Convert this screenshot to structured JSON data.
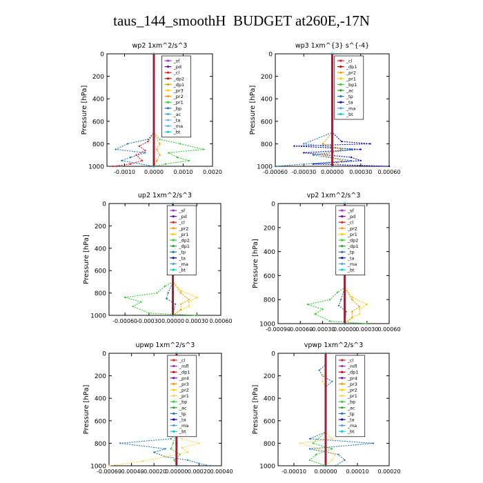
{
  "page": {
    "title": "taus_144_smoothH  BUDGET at260E,-17N"
  },
  "chart_data": [
    {
      "type": "line",
      "title": "wp2   1xm^2/s^3",
      "ylabel": "Pressure  [hPa]",
      "ylim": [
        1000,
        0
      ],
      "yticks": [
        0,
        200,
        400,
        600,
        800,
        1000
      ],
      "xlim": [
        -0.0016,
        0.002
      ],
      "xticks": [
        -0.001,
        0.0,
        0.001,
        0.002
      ],
      "xtick_labels": [
        "-0.0010",
        "0.0000",
        "0.0010",
        "0.0020"
      ],
      "legend_labels": [
        "_sf",
        "_pd",
        "_cl",
        "_dp2",
        "_dp1",
        "_pr3",
        "_pr2",
        "_pr1",
        "_bp",
        "_ac",
        "_ta",
        "_ma",
        "_bt"
      ],
      "legend_colors": [
        "#9b30d0",
        "#6a0dad",
        "#e41a1c",
        "#cc0000",
        "#e8a000",
        "#ffcc00",
        "#ff9900",
        "#33cc33",
        "#1f78b4",
        "#4aa3df",
        "#7fb3e0",
        "#5bc0de",
        "#00cccc"
      ],
      "series": [
        {
          "name": "_pr1",
          "p": [
            0,
            700,
            760,
            800,
            850,
            880,
            920,
            950,
            980,
            1000
          ],
          "v": [
            0.0,
            0.0,
            0.0002,
            0.0009,
            0.0017,
            0.0005,
            0.0008,
            0.0012,
            0.0004,
            0.0
          ]
        },
        {
          "name": "_bp",
          "p": [
            0,
            700,
            760,
            800,
            850,
            880,
            920,
            950,
            1000
          ],
          "v": [
            0.0,
            0.0,
            -0.0002,
            -0.0009,
            -0.0013,
            -0.0003,
            -0.0008,
            -0.0011,
            0.0
          ]
        },
        {
          "name": "_cl",
          "p": [
            0,
            700,
            780,
            820,
            860,
            900,
            950,
            980,
            1000
          ],
          "v": [
            0.0,
            0.0,
            -0.0002,
            -0.0005,
            -0.0003,
            -0.0006,
            -0.0004,
            -0.0008,
            -0.0014
          ]
        },
        {
          "name": "_pr2",
          "p": [
            0,
            700,
            800,
            850,
            900,
            950,
            1000
          ],
          "v": [
            0.0,
            0.0,
            0.0002,
            0.0001,
            0.0002,
            0.0001,
            0.0
          ]
        },
        {
          "name": "_sf",
          "p": [
            0,
            200,
            400,
            600,
            800,
            900,
            1000
          ],
          "v": [
            0.0,
            0.0,
            0.0,
            0.0,
            0.0,
            0.0,
            0.0
          ]
        },
        {
          "name": "_bt",
          "p": [
            0,
            200,
            400,
            600,
            800,
            1000
          ],
          "v": [
            0.0,
            0.0,
            0.0,
            0.0,
            0.0,
            0.0
          ]
        }
      ]
    },
    {
      "type": "line",
      "title": "wp3   1xm^{3} s^{-4}",
      "ylabel": "Pressure  [hPa]",
      "ylim": [
        1000,
        0
      ],
      "yticks": [
        0,
        200,
        400,
        600,
        800,
        1000
      ],
      "xlim": [
        -0.0006,
        0.0006
      ],
      "xticks": [
        -0.0006,
        -0.0003,
        0.0,
        0.0003,
        0.0006
      ],
      "xtick_labels": [
        "-0.00060",
        "-0.00030",
        "0.00000",
        "0.00030",
        "0.00060"
      ],
      "legend_labels": [
        "_cl",
        "_dp1",
        "_pr2",
        "_pr1",
        "_bp1",
        "_ac",
        "_tp",
        "_ta",
        "_ma",
        "_bt"
      ],
      "legend_colors": [
        "#e41a1c",
        "#cc0000",
        "#ff9900",
        "#ffcc00",
        "#33cc33",
        "#2ca02c",
        "#1f78b4",
        "#0000cc",
        "#4aa3df",
        "#00cccc"
      ],
      "series": [
        {
          "name": "_ta",
          "p": [
            0,
            700,
            780,
            800,
            820,
            850,
            880,
            920,
            950,
            980,
            1000
          ],
          "v": [
            0.0,
            0.0,
            0.0001,
            0.0004,
            -0.0004,
            0.0003,
            -0.0003,
            0.0002,
            0.0003,
            -0.0002,
            0.0006
          ]
        },
        {
          "name": "_tp",
          "p": [
            0,
            700,
            800,
            850,
            900,
            950,
            1000
          ],
          "v": [
            0.0,
            0.0,
            -0.0003,
            0.0002,
            -0.0002,
            0.0002,
            -0.0006
          ]
        },
        {
          "name": "_pr2",
          "p": [
            0,
            700,
            800,
            850,
            900,
            950,
            1000
          ],
          "v": [
            0.0,
            0.0,
            -0.0001,
            0.0001,
            -0.0001,
            0.0001,
            0.0
          ]
        },
        {
          "name": "_cl",
          "p": [
            0,
            200,
            400,
            600,
            800,
            1000
          ],
          "v": [
            0.0,
            0.0,
            0.0,
            0.0,
            0.0,
            0.0
          ]
        },
        {
          "name": "_bt",
          "p": [
            0,
            200,
            400,
            600,
            800,
            1000
          ],
          "v": [
            0.0,
            0.0,
            0.0,
            0.0,
            0.0,
            0.0
          ]
        }
      ]
    },
    {
      "type": "line",
      "title": "up2   1xm^2/s^3",
      "ylabel": "Pressure  [hPa]",
      "ylim": [
        1000,
        0
      ],
      "yticks": [
        0,
        200,
        400,
        600,
        800,
        1000
      ],
      "xlim": [
        -0.0008,
        0.0006
      ],
      "xticks": [
        -0.0006,
        -0.0003,
        0.0,
        0.0003,
        0.0006
      ],
      "xtick_labels": [
        "-0.00060",
        "-0.00030",
        "0.00000",
        "0.00030",
        "0.00060"
      ],
      "legend_labels": [
        "_sf",
        "_pd",
        "_cl",
        "_pr2",
        "_pr1",
        "_dp2",
        "_dp1",
        "_tp",
        "_ta",
        "_ma",
        "_bt"
      ],
      "legend_colors": [
        "#9b30d0",
        "#6a0dad",
        "#e41a1c",
        "#ff9900",
        "#ffcc00",
        "#33cc33",
        "#2ca02c",
        "#1f78b4",
        "#0000cc",
        "#4aa3df",
        "#00cccc"
      ],
      "series": [
        {
          "name": "_dp2",
          "p": [
            0,
            100,
            150,
            200,
            300,
            700,
            740,
            800,
            840,
            880,
            920,
            980,
            1000
          ],
          "v": [
            0.0,
            0.0,
            -4e-05,
            -5e-05,
            0.0,
            0.0,
            -0.0001,
            -0.0002,
            -0.0006,
            -0.0004,
            -0.0005,
            -0.0003,
            0.0003
          ]
        },
        {
          "name": "_pr1",
          "p": [
            0,
            700,
            780,
            840,
            880,
            920,
            950,
            1000
          ],
          "v": [
            0.0,
            0.0,
            0.0001,
            0.0003,
            0.0002,
            0.0002,
            0.0001,
            0.0
          ]
        },
        {
          "name": "_pr2",
          "p": [
            0,
            700,
            800,
            860,
            900,
            950,
            1000
          ],
          "v": [
            0.0,
            0.0,
            0.0001,
            0.0002,
            0.0001,
            0.0001,
            0.0
          ]
        },
        {
          "name": "_tp",
          "p": [
            0,
            700,
            800,
            850,
            900,
            1000
          ],
          "v": [
            0.0,
            0.0,
            -6e-05,
            -8e-05,
            3e-05,
            0.0
          ]
        },
        {
          "name": "_sf",
          "p": [
            0,
            200,
            400,
            600,
            800,
            1000
          ],
          "v": [
            0.0,
            0.0,
            0.0,
            0.0,
            0.0,
            0.0
          ]
        },
        {
          "name": "_bt",
          "p": [
            0,
            200,
            400,
            600,
            800,
            1000
          ],
          "v": [
            0.0,
            0.0,
            0.0,
            0.0,
            0.0,
            0.0
          ]
        }
      ]
    },
    {
      "type": "line",
      "title": "vp2   1xm^2/s^3",
      "ylabel": "Pressure  [hPa]",
      "ylim": [
        1000,
        0
      ],
      "yticks": [
        0,
        200,
        400,
        600,
        800,
        1000
      ],
      "xlim": [
        -0.0009,
        0.0006
      ],
      "xticks": [
        -0.0009,
        -0.0006,
        -0.0003,
        0.0,
        0.0003,
        0.0006
      ],
      "xtick_labels": [
        "-0.00090",
        "-0.00060",
        "-0.00030",
        "0.00000",
        "0.00030",
        "0.00060"
      ],
      "legend_labels": [
        "_sf",
        "_pd",
        "_cl",
        "_pr2",
        "_pr1",
        "_dp2",
        "_dp1",
        "_tp",
        "_ta",
        "_ma",
        "_bt"
      ],
      "legend_colors": [
        "#9b30d0",
        "#6a0dad",
        "#e41a1c",
        "#ff9900",
        "#ffcc00",
        "#33cc33",
        "#2ca02c",
        "#1f78b4",
        "#0000cc",
        "#4aa3df",
        "#00cccc"
      ],
      "series": [
        {
          "name": "_dp2",
          "p": [
            0,
            100,
            150,
            200,
            300,
            700,
            740,
            800,
            840,
            880,
            920,
            980,
            1000
          ],
          "v": [
            0.0,
            0.0,
            -4e-05,
            -5e-05,
            0.0,
            0.0,
            -0.0001,
            -0.0002,
            -0.0005,
            -0.0003,
            -0.0004,
            -0.0002,
            0.0003
          ]
        },
        {
          "name": "_tp",
          "p": [
            0,
            100,
            150,
            200,
            300,
            700,
            800,
            850,
            900,
            1000
          ],
          "v": [
            0.0,
            0.0,
            4e-05,
            5e-05,
            0.0,
            0.0,
            -5e-05,
            -8e-05,
            2e-05,
            0.0
          ]
        },
        {
          "name": "_pr1",
          "p": [
            0,
            700,
            780,
            840,
            880,
            920,
            950,
            1000
          ],
          "v": [
            0.0,
            0.0,
            0.0001,
            0.0003,
            0.0002,
            0.0002,
            0.0001,
            0.0
          ]
        },
        {
          "name": "_pr2",
          "p": [
            0,
            700,
            800,
            860,
            900,
            950,
            1000
          ],
          "v": [
            0.0,
            0.0,
            0.0001,
            0.0002,
            0.0001,
            0.0001,
            0.0
          ]
        },
        {
          "name": "_sf",
          "p": [
            0,
            200,
            400,
            600,
            800,
            1000
          ],
          "v": [
            0.0,
            0.0,
            0.0,
            0.0,
            0.0,
            0.0
          ]
        },
        {
          "name": "_bt",
          "p": [
            0,
            200,
            400,
            600,
            800,
            1000
          ],
          "v": [
            0.0,
            0.0,
            0.0,
            0.0,
            0.0,
            0.0
          ]
        }
      ]
    },
    {
      "type": "line",
      "title": "upwp   1xm^2/s^3",
      "ylabel": "Pressure  [hPa]",
      "ylim": [
        1000,
        0
      ],
      "yticks": [
        0,
        200,
        400,
        600,
        800,
        1000
      ],
      "xlim": [
        -0.0006,
        0.0004
      ],
      "xticks": [
        -0.0006,
        -0.0004,
        -0.0002,
        0.0,
        0.0002,
        0.0004
      ],
      "xtick_labels": [
        "-0.00060",
        "-0.00040",
        "-0.00020",
        "0.00000",
        "0.00020",
        "0.00040"
      ],
      "legend_labels": [
        "_cl",
        "_mfl",
        "_dp1",
        "_pr4",
        "_pr3",
        "_pr2",
        "_pr1",
        "_bp",
        "_ac",
        "_tp",
        "_ta",
        "_ma",
        "_bt"
      ],
      "legend_colors": [
        "#e41a1c",
        "#9b30d0",
        "#cc0000",
        "#6a0dad",
        "#ff9900",
        "#ffcc00",
        "#ffd24d",
        "#33cc33",
        "#2ca02c",
        "#1f78b4",
        "#0000cc",
        "#4aa3df",
        "#00cccc"
      ],
      "series": [
        {
          "name": "_tp",
          "p": [
            0,
            700,
            760,
            800,
            850,
            880,
            920,
            950,
            980,
            1000
          ],
          "v": [
            0.0,
            0.0,
            -5e-05,
            -0.0005,
            -0.0001,
            -0.0002,
            -0.0001,
            0.0001,
            0.0002,
            0.0003
          ]
        },
        {
          "name": "_pr1",
          "p": [
            0,
            700,
            760,
            800,
            840,
            880,
            920,
            960,
            1000
          ],
          "v": [
            0.0,
            0.0,
            5e-05,
            0.0002,
            5e-05,
            0.0001,
            -0.0001,
            -0.0003,
            -0.0006
          ]
        },
        {
          "name": "_bp",
          "p": [
            0,
            700,
            800,
            850,
            900,
            950,
            1000
          ],
          "v": [
            0.0,
            0.0,
            -3e-05,
            -5e-05,
            3e-05,
            -2e-05,
            0.0
          ]
        },
        {
          "name": "_cl",
          "p": [
            0,
            200,
            400,
            600,
            800,
            1000
          ],
          "v": [
            0.0,
            0.0,
            0.0,
            0.0,
            0.0,
            0.0
          ]
        },
        {
          "name": "_bt",
          "p": [
            0,
            200,
            400,
            600,
            800,
            1000
          ],
          "v": [
            0.0,
            0.0,
            0.0,
            0.0,
            0.0,
            0.0
          ]
        }
      ]
    },
    {
      "type": "line",
      "title": "vpwp   1xm^2/s^3",
      "ylabel": "Pressure  [hPa]",
      "ylim": [
        1000,
        0
      ],
      "yticks": [
        0,
        200,
        400,
        600,
        800,
        1000
      ],
      "xlim": [
        -0.00015,
        0.0002
      ],
      "xticks": [
        -0.0001,
        0.0,
        0.0001,
        0.0002
      ],
      "xtick_labels": [
        "-0.00010",
        "0.00000",
        "0.00010",
        "0.00020"
      ],
      "legend_labels": [
        "_cl",
        "_mfl",
        "_dp1",
        "_pr4",
        "_pr3",
        "_pr2",
        "_pr1",
        "_bp",
        "_ac",
        "_tp",
        "_ta",
        "_ma",
        "_bt"
      ],
      "legend_colors": [
        "#e41a1c",
        "#9b30d0",
        "#cc0000",
        "#6a0dad",
        "#ff9900",
        "#ffcc00",
        "#ffd24d",
        "#33cc33",
        "#2ca02c",
        "#1f78b4",
        "#0000cc",
        "#4aa3df",
        "#00cccc"
      ],
      "series": [
        {
          "name": "_tp",
          "p": [
            0,
            100,
            150,
            200,
            250,
            300,
            700,
            760,
            800,
            850,
            900,
            950,
            1000
          ],
          "v": [
            0.0,
            0.0,
            -2e-05,
            -1e-05,
            2e-05,
            0.0,
            0.0,
            -5e-05,
            0.00015,
            -5e-05,
            4e-05,
            6e-05,
            3e-05
          ]
        },
        {
          "name": "_pr1",
          "p": [
            0,
            150,
            200,
            250,
            300,
            700,
            760,
            800,
            850,
            900,
            950,
            1000
          ],
          "v": [
            0.0,
            0.0,
            -1e-05,
            -1e-05,
            0.0,
            0.0,
            2e-05,
            -8e-05,
            -2e-05,
            3e-05,
            2e-05,
            0.0
          ]
        },
        {
          "name": "_bp",
          "p": [
            0,
            700,
            800,
            850,
            900,
            950,
            1000
          ],
          "v": [
            0.0,
            0.0,
            -4e-05,
            2e-05,
            -3e-05,
            -5e-05,
            0.0
          ]
        },
        {
          "name": "_cl",
          "p": [
            0,
            200,
            400,
            600,
            800,
            1000
          ],
          "v": [
            0.0,
            0.0,
            0.0,
            0.0,
            0.0,
            0.0
          ]
        },
        {
          "name": "_bt",
          "p": [
            0,
            200,
            400,
            600,
            800,
            1000
          ],
          "v": [
            0.0,
            0.0,
            0.0,
            0.0,
            0.0,
            0.0
          ]
        }
      ]
    }
  ]
}
